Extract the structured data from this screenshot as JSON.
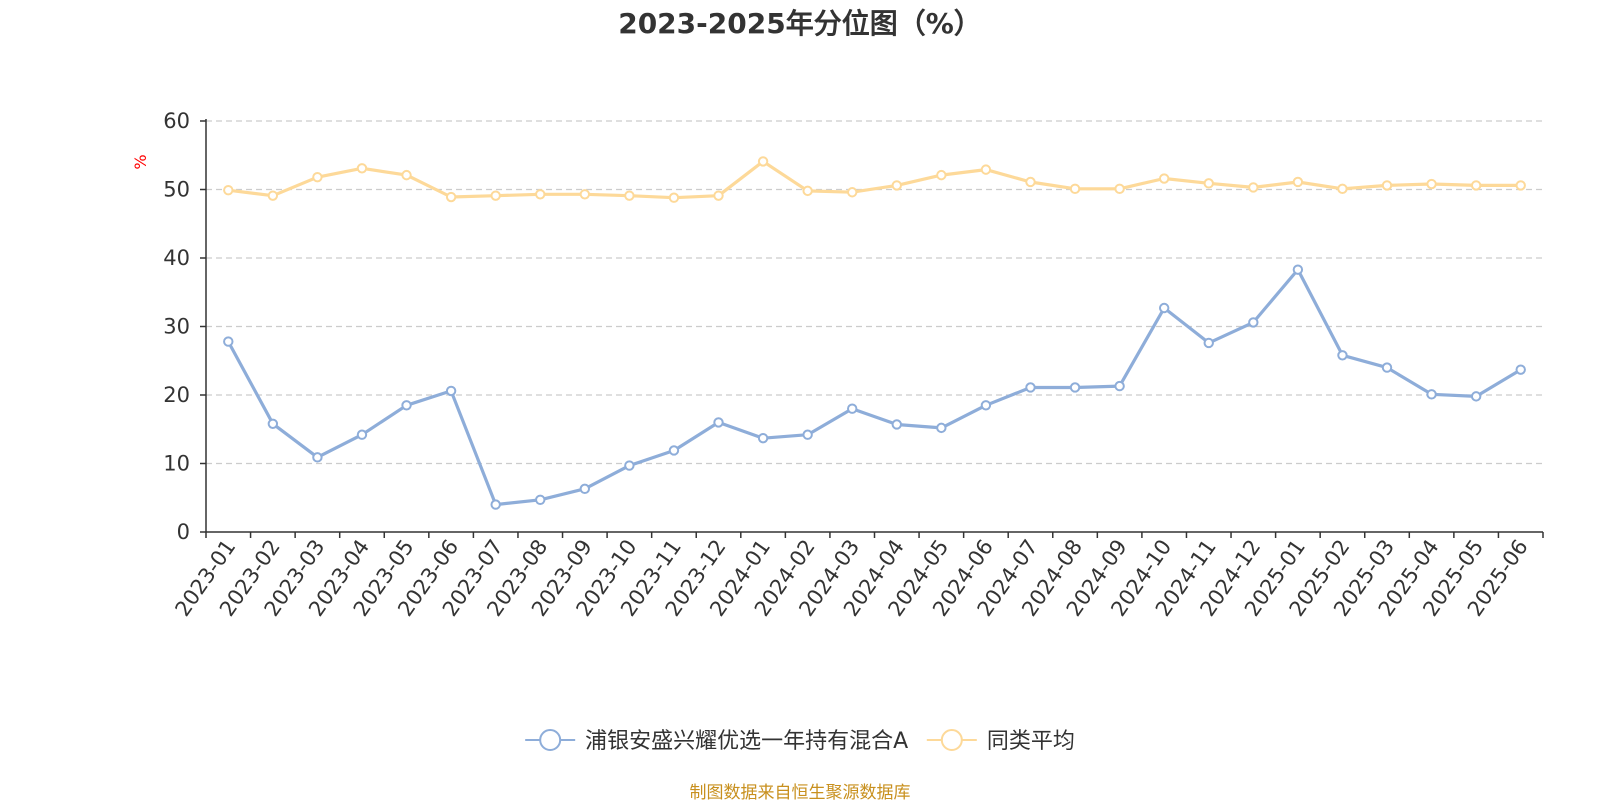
{
  "chart_data": {
    "type": "line",
    "title": "2023-2025年分位图（%）",
    "ylabel": "%",
    "ylim": [
      0,
      60
    ],
    "yticks": [
      0,
      10,
      20,
      30,
      40,
      50,
      60
    ],
    "grid": true,
    "legend_position": "bottom",
    "categories": [
      "2023-01",
      "2023-02",
      "2023-03",
      "2023-04",
      "2023-05",
      "2023-06",
      "2023-07",
      "2023-08",
      "2023-09",
      "2023-10",
      "2023-11",
      "2023-12",
      "2024-01",
      "2024-02",
      "2024-03",
      "2024-04",
      "2024-05",
      "2024-06",
      "2024-07",
      "2024-08",
      "2024-09",
      "2024-10",
      "2024-11",
      "2024-12",
      "2025-01",
      "2025-02",
      "2025-03",
      "2025-04",
      "2025-05",
      "2025-06"
    ],
    "series": [
      {
        "name": "浦银安盛兴耀优选一年持有混合A",
        "color": "#8eadd9",
        "values": [
          27.8,
          15.8,
          10.9,
          14.2,
          18.5,
          20.6,
          4.0,
          4.7,
          6.3,
          9.7,
          11.9,
          16.0,
          13.7,
          14.2,
          18.0,
          15.7,
          15.2,
          18.5,
          21.1,
          21.1,
          21.3,
          32.7,
          27.6,
          30.6,
          38.3,
          25.8,
          24.0,
          20.1,
          19.8,
          23.7
        ]
      },
      {
        "name": "同类平均",
        "color": "#fdd999",
        "values": [
          49.9,
          49.1,
          51.8,
          53.1,
          52.1,
          48.9,
          49.1,
          49.3,
          49.3,
          49.1,
          48.8,
          49.1,
          54.1,
          49.8,
          49.6,
          50.6,
          52.1,
          52.9,
          51.1,
          50.1,
          50.1,
          51.6,
          50.9,
          50.3,
          51.1,
          50.1,
          50.6,
          50.8,
          50.6,
          50.6
        ]
      }
    ]
  },
  "footer": {
    "source": "制图数据来自恒生聚源数据库"
  },
  "colors": {
    "axis_label_unit": "#ff0000",
    "grid": "#cccccc",
    "source_text": "#c8901e"
  }
}
